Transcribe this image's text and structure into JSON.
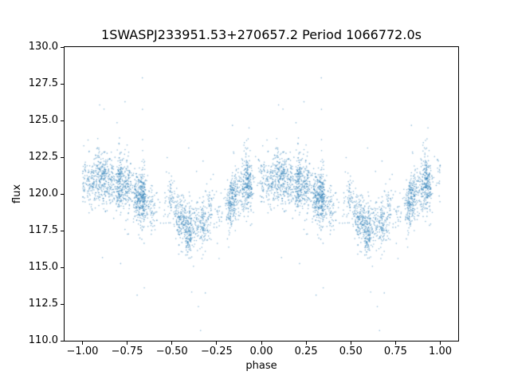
{
  "chart_data": {
    "type": "scatter",
    "title": "1SWASPJ233951.53+270657.2 Period 1066772.0s",
    "xlabel": "phase",
    "ylabel": "flux",
    "xlim": [
      -1.1,
      1.1
    ],
    "ylim": [
      110.0,
      130.0
    ],
    "grid": false,
    "legend": "none",
    "xticks": {
      "values": [
        -1.0,
        -0.75,
        -0.5,
        -0.25,
        0.0,
        0.25,
        0.5,
        0.75,
        1.0
      ],
      "labels": [
        "−1.00",
        "−0.75",
        "−0.50",
        "−0.25",
        "0.00",
        "0.25",
        "0.50",
        "0.75",
        "1.00"
      ]
    },
    "yticks": {
      "values": [
        110.0,
        112.5,
        115.0,
        117.5,
        120.0,
        122.5,
        125.0,
        127.5,
        130.0
      ],
      "labels": [
        "110.0",
        "112.5",
        "115.0",
        "117.5",
        "120.0",
        "122.5",
        "125.0",
        "127.5",
        "130.0"
      ]
    },
    "marker": {
      "color": "#1f77b4",
      "alpha": 0.5,
      "size": 1.6
    },
    "phase_folded_duplicate": true,
    "trend": {
      "phase": [
        0.0,
        0.05,
        0.1,
        0.15,
        0.2,
        0.25,
        0.3,
        0.35,
        0.4,
        0.45,
        0.5,
        0.55,
        0.6,
        0.65,
        0.7,
        0.75,
        0.8,
        0.85,
        0.9,
        0.95,
        1.0
      ],
      "mean_flux": [
        120.9,
        121.1,
        121.0,
        120.7,
        120.5,
        120.4,
        120.1,
        119.4,
        118.9,
        119.3,
        119.3,
        118.3,
        117.6,
        117.9,
        118.2,
        118.5,
        119.3,
        120.3,
        120.8,
        120.9,
        120.9
      ],
      "sigma": 0.85
    },
    "scatter_model": {
      "seed": 20391,
      "n_clusters": 48,
      "points_per_cluster": 46,
      "phase_jitter": 0.011,
      "cluster_offset_sigma": 0.35,
      "n_uniform": 320,
      "outlier_fraction": 0.025,
      "outlier_sigma": 3.2
    }
  }
}
